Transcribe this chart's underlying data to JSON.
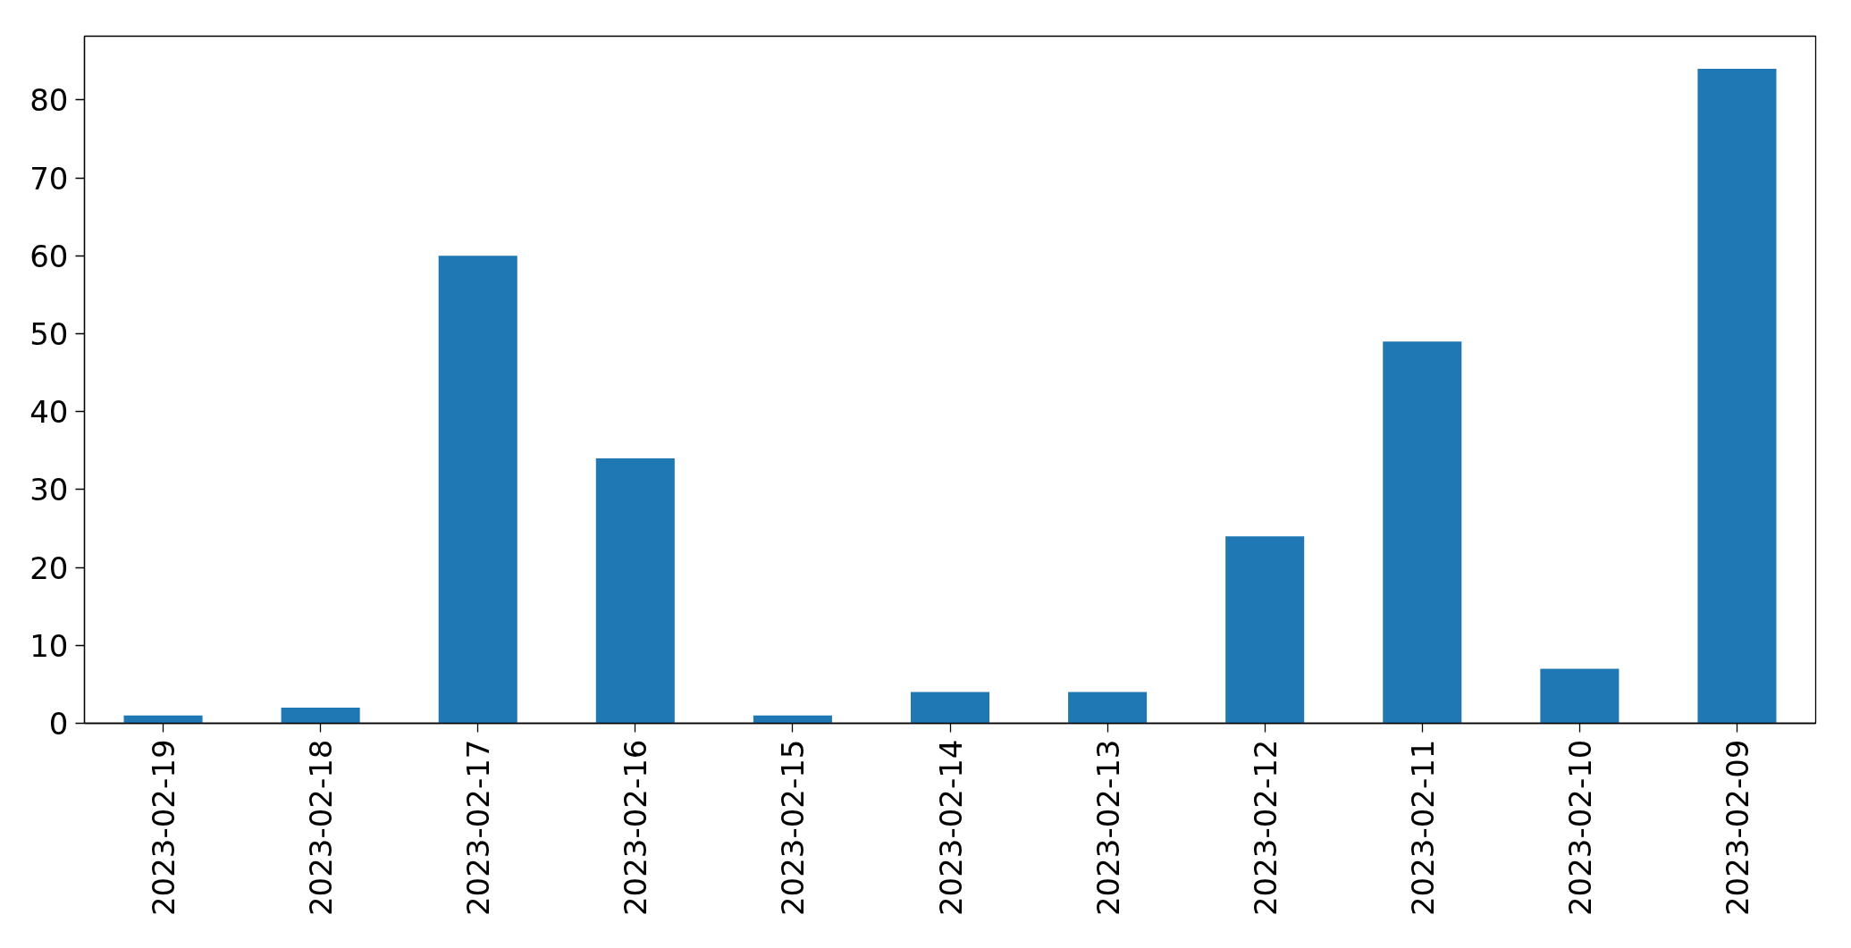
{
  "chart_data": {
    "type": "bar",
    "categories": [
      "2023-02-19",
      "2023-02-18",
      "2023-02-17",
      "2023-02-16",
      "2023-02-15",
      "2023-02-14",
      "2023-02-13",
      "2023-02-12",
      "2023-02-11",
      "2023-02-10",
      "2023-02-09"
    ],
    "values": [
      1,
      2,
      60,
      34,
      1,
      4,
      4,
      24,
      49,
      7,
      84
    ],
    "color": "#1f77b4",
    "ylim": [
      0,
      88.2
    ],
    "yticks": [
      0,
      10,
      20,
      30,
      40,
      50,
      60,
      70,
      80
    ],
    "grid": false
  }
}
